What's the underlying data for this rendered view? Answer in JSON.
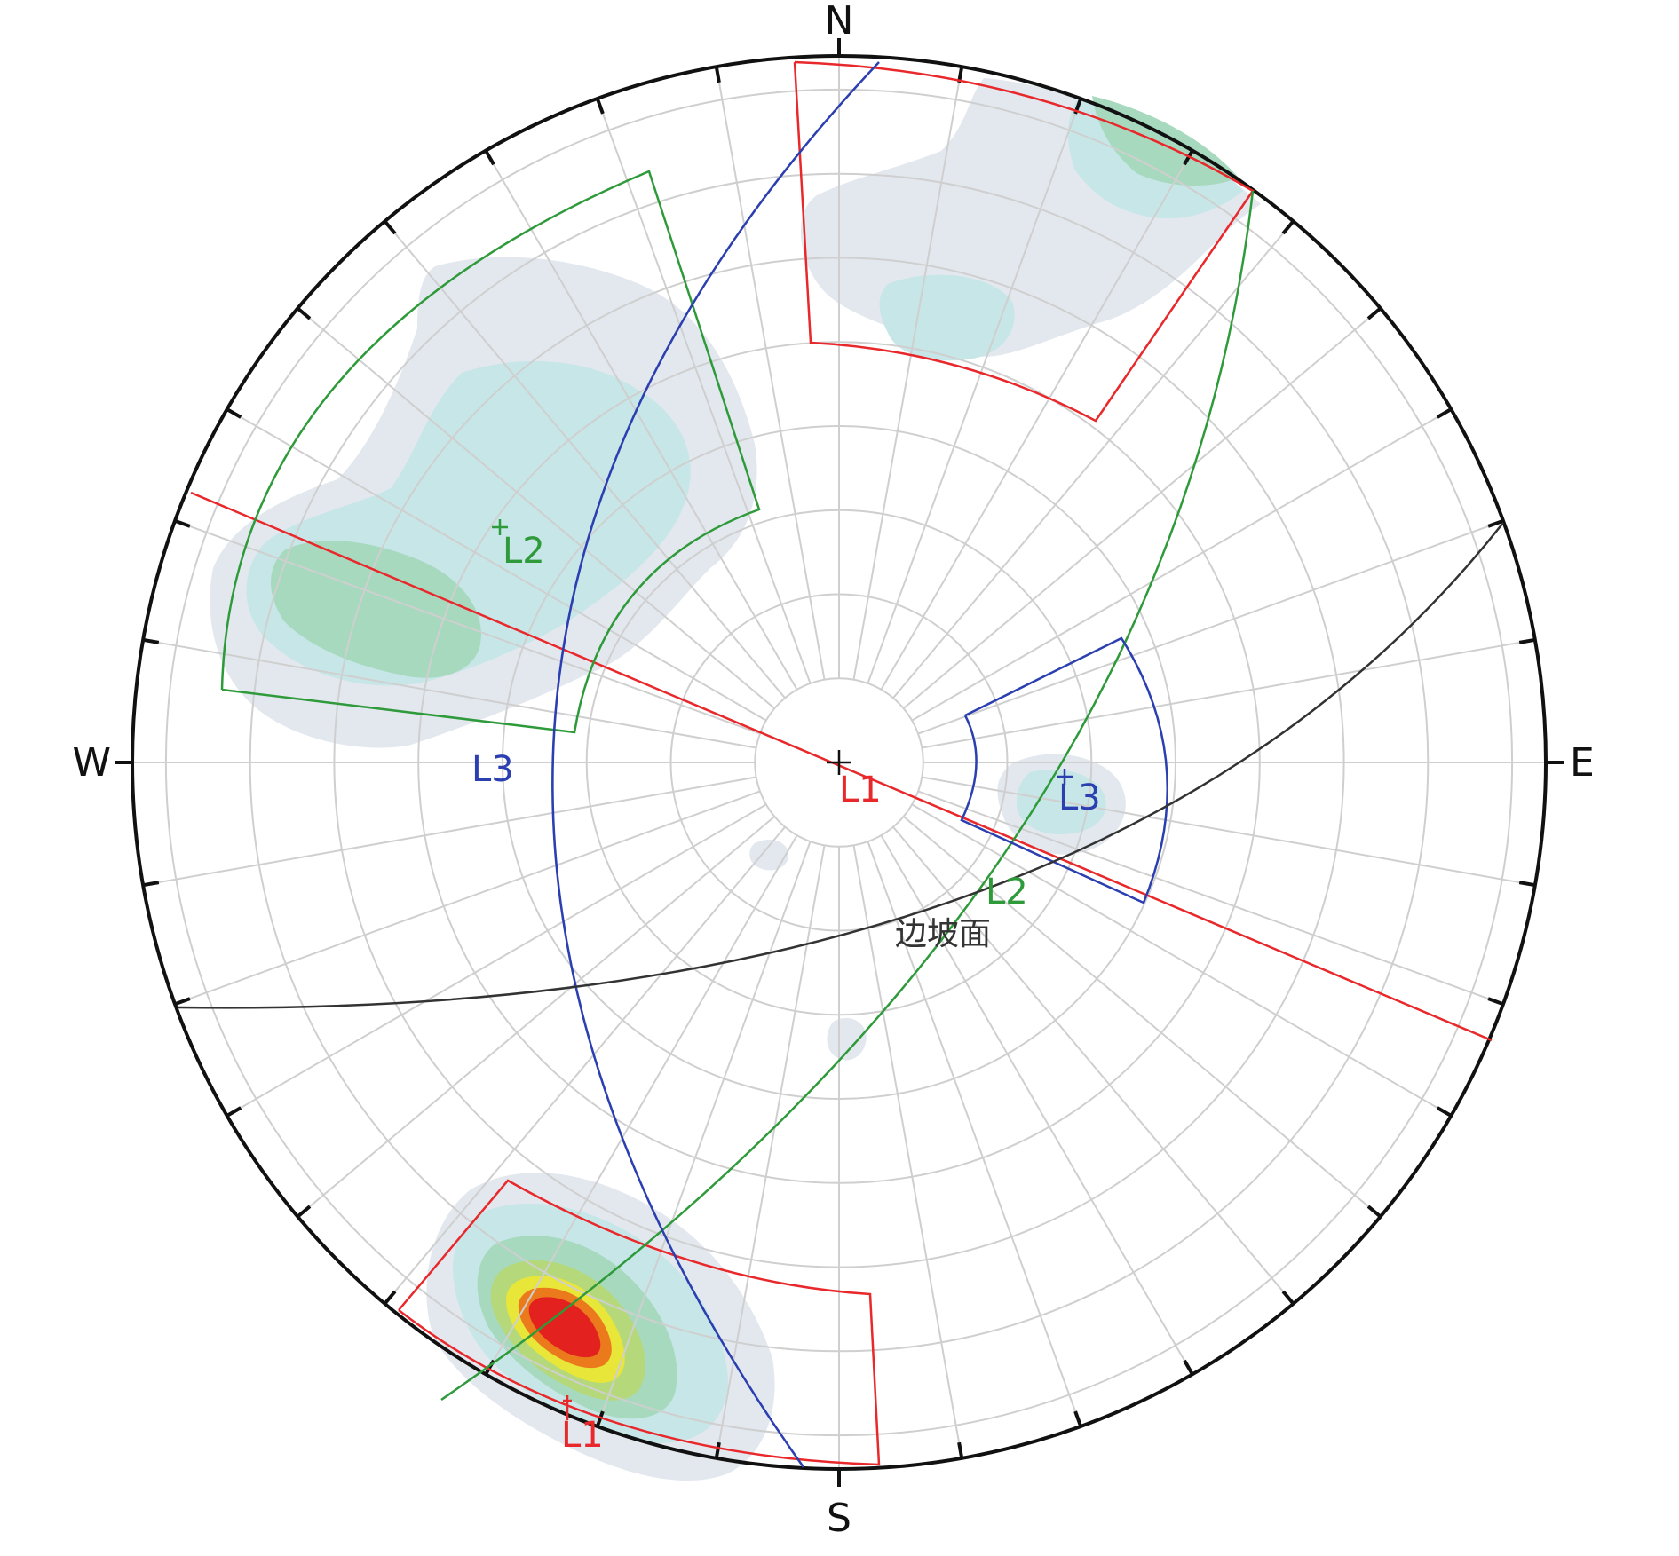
{
  "compass": {
    "north": "N",
    "south": "S",
    "east": "E",
    "west": "W"
  },
  "labels": {
    "l1_center": "L1",
    "l1_bottom": "L1",
    "l2_upper": "L2",
    "l2_lower": "L2",
    "l3_left": "L3",
    "l3_right": "L3",
    "slope_face": "边坡面"
  },
  "colors": {
    "L1": "#e8282b",
    "L2": "#2e9a3a",
    "L3": "#2b3fb0",
    "slope_face": "#333333",
    "grid": "#cfcfcf",
    "primitive": "#111111"
  },
  "density_colors": [
    "#e3e8ef",
    "#c7e6e7",
    "#a7d9bf",
    "#b5d97a",
    "#e9e63a",
    "#f0a11f",
    "#ea7a1c",
    "#e3211f"
  ]
}
